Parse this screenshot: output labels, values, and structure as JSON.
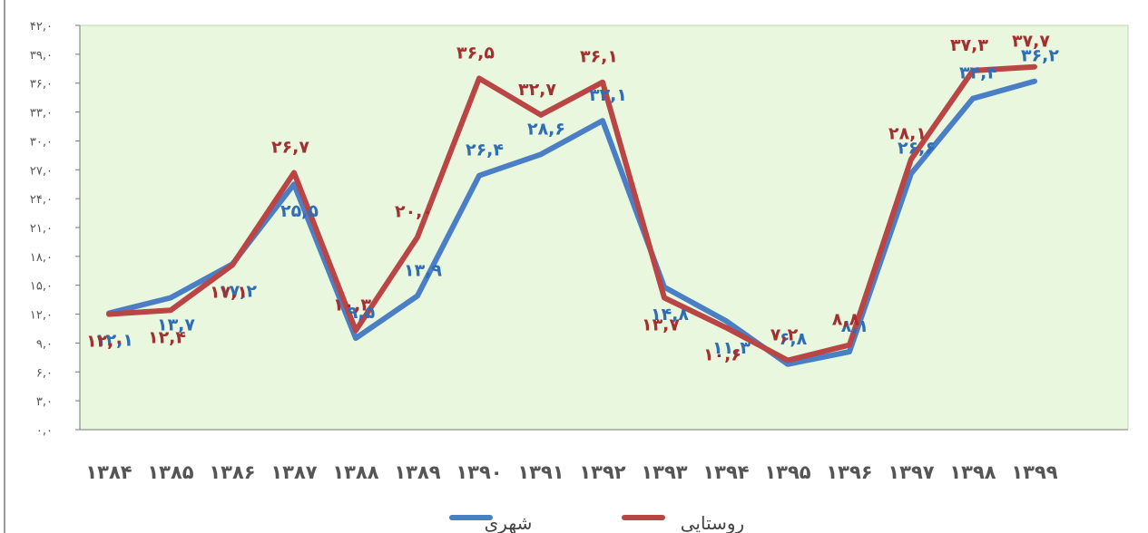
{
  "chart_data": {
    "type": "line",
    "categories": [
      "۱۳۸۴",
      "۱۳۸۵",
      "۱۳۸۶",
      "۱۳۸۷",
      "۱۳۸۸",
      "۱۳۸۹",
      "۱۳۹۰",
      "۱۳۹۱",
      "۱۳۹۲",
      "۱۳۹۳",
      "۱۳۹۴",
      "۱۳۹۵",
      "۱۳۹۶",
      "۱۳۹۷",
      "۱۳۹۸",
      "۱۳۹۹"
    ],
    "series": [
      {
        "name": "شهری",
        "color": "#4a7fc6",
        "values": [
          12.1,
          13.7,
          17.2,
          25.5,
          9.5,
          13.9,
          26.4,
          28.6,
          32.1,
          14.8,
          11.3,
          6.8,
          8.1,
          26.6,
          34.4,
          36.2
        ],
        "labels": [
          "۱۲,۱",
          "۱۳,۷",
          "۱۷,۲",
          "۲۵,۵",
          "۹,۵",
          "۱۳,۹",
          "۲۶,۴",
          "۲۸,۶",
          "۳۲,۱",
          "۱۴,۸",
          "۱۱,۳",
          "۶,۸",
          "۸,۱",
          "۲۶,۶",
          "۳۴,۴",
          "۳۶,۲"
        ]
      },
      {
        "name": "روستایی",
        "color": "#b94545",
        "values": [
          12.0,
          12.4,
          17.1,
          26.7,
          10.3,
          20.0,
          36.5,
          32.7,
          36.1,
          13.7,
          10.6,
          7.2,
          8.8,
          28.1,
          37.3,
          37.7
        ],
        "labels": [
          "۱۲,۰",
          "۱۲,۴",
          "۱۷,۱",
          "۲۶,۷",
          "۱۰,۳",
          "۲۰,۰",
          "۳۶,۵",
          "۳۲,۷",
          "۳۶,۱",
          "۱۳,۷",
          "۱۰,۶",
          "۷,۲",
          "۸,۸",
          "۲۸,۱",
          "۳۷,۳",
          "۳۷,۷"
        ]
      }
    ],
    "ylim": [
      0,
      42
    ],
    "yticks": [
      0,
      3,
      6,
      9,
      12,
      15,
      18,
      21,
      24,
      27,
      30,
      33,
      36,
      39,
      42
    ],
    "ytick_labels": [
      "۰,۰",
      "۳,۰",
      "۶,۰",
      "۹,۰",
      "۱۲,۰",
      "۱۵,۰",
      "۱۸,۰",
      "۲۱,۰",
      "۲۴,۰",
      "۲۷,۰",
      "۳۰,۰",
      "۳۳,۰",
      "۳۶,۰",
      "۳۹,۰",
      "۴۲,۰"
    ],
    "grid": false,
    "plot_background": "#eaf7df",
    "legend_position": "bottom-center",
    "title": ""
  }
}
